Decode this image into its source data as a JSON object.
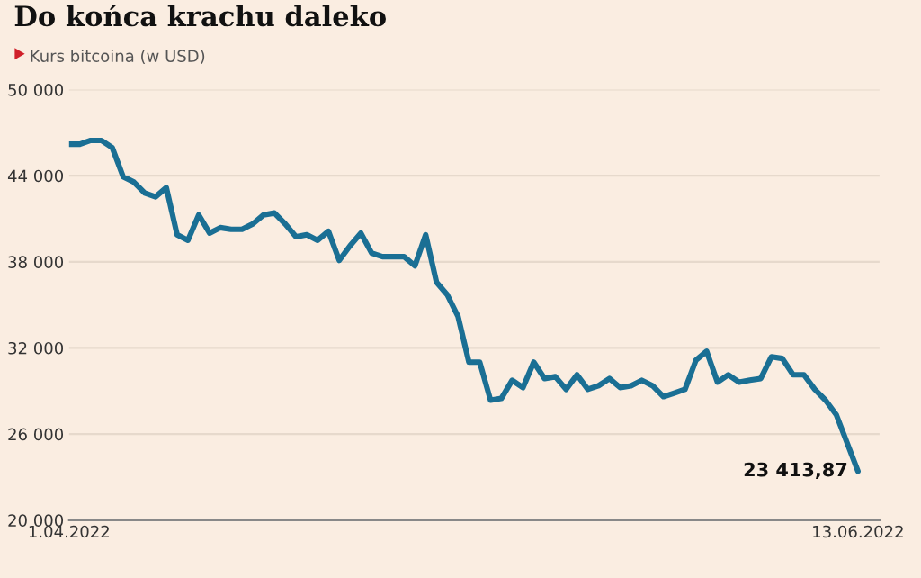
{
  "chart_data": {
    "type": "line",
    "title": "Do końca krachu daleko",
    "subtitle": "Kurs bitcoina (w USD)",
    "x": [
      "2022-04-01",
      "2022-04-02",
      "2022-04-03",
      "2022-04-04",
      "2022-04-05",
      "2022-04-06",
      "2022-04-07",
      "2022-04-08",
      "2022-04-09",
      "2022-04-10",
      "2022-04-11",
      "2022-04-12",
      "2022-04-13",
      "2022-04-14",
      "2022-04-15",
      "2022-04-16",
      "2022-04-17",
      "2022-04-18",
      "2022-04-19",
      "2022-04-20",
      "2022-04-21",
      "2022-04-22",
      "2022-04-23",
      "2022-04-24",
      "2022-04-25",
      "2022-04-26",
      "2022-04-27",
      "2022-04-28",
      "2022-04-29",
      "2022-04-30",
      "2022-05-01",
      "2022-05-02",
      "2022-05-03",
      "2022-05-04",
      "2022-05-05",
      "2022-05-06",
      "2022-05-07",
      "2022-05-08",
      "2022-05-09",
      "2022-05-10",
      "2022-05-11",
      "2022-05-12",
      "2022-05-13",
      "2022-05-14",
      "2022-05-15",
      "2022-05-16",
      "2022-05-17",
      "2022-05-18",
      "2022-05-19",
      "2022-05-20",
      "2022-05-21",
      "2022-05-22",
      "2022-05-23",
      "2022-05-24",
      "2022-05-25",
      "2022-05-26",
      "2022-05-27",
      "2022-05-28",
      "2022-05-29",
      "2022-05-30",
      "2022-05-31",
      "2022-06-01",
      "2022-06-02",
      "2022-06-03",
      "2022-06-04",
      "2022-06-05",
      "2022-06-06",
      "2022-06-07",
      "2022-06-08",
      "2022-06-09",
      "2022-06-10",
      "2022-06-11",
      "2022-06-13"
    ],
    "series": [
      {
        "color": "#1a6f94",
        "values": [
          46200,
          46200,
          46460,
          46460,
          45950,
          43930,
          43550,
          42790,
          42530,
          43170,
          39880,
          39500,
          41270,
          40000,
          40380,
          40260,
          40260,
          40640,
          41270,
          41400,
          40640,
          39750,
          39880,
          39500,
          40130,
          38100,
          39120,
          40000,
          38610,
          38360,
          38360,
          38360,
          37720,
          39880,
          36580,
          35700,
          34180,
          31010,
          31010,
          28360,
          28480,
          29750,
          29240,
          31010,
          29870,
          30000,
          29120,
          30130,
          29120,
          29370,
          29870,
          29240,
          29370,
          29750,
          29370,
          28610,
          28860,
          29120,
          31140,
          31770,
          29620,
          30130,
          29620,
          29750,
          29870,
          31390,
          31270,
          30130,
          30130,
          29120,
          28360,
          27340,
          23413.87
        ]
      }
    ],
    "xlim": [
      "2022-04-01",
      "2022-06-15"
    ],
    "xticks": [
      {
        "value": "2022-04-01",
        "label": "1.04.2022"
      },
      {
        "value": "2022-06-13",
        "label": "13.06.2022"
      }
    ],
    "ylim": [
      20000,
      50000
    ],
    "yticks": [
      {
        "value": 20000,
        "label": "20 000"
      },
      {
        "value": 26000,
        "label": "26 000"
      },
      {
        "value": 32000,
        "label": "32 000"
      },
      {
        "value": 38000,
        "label": "38 000"
      },
      {
        "value": 44000,
        "label": "44 000"
      },
      {
        "value": 50000,
        "label": "50 000"
      }
    ],
    "annotations": [
      {
        "text": "23 413,87",
        "x": "2022-06-13",
        "y": 23413.87
      }
    ],
    "grid": "y",
    "marker": "none",
    "line_style": "solid"
  }
}
